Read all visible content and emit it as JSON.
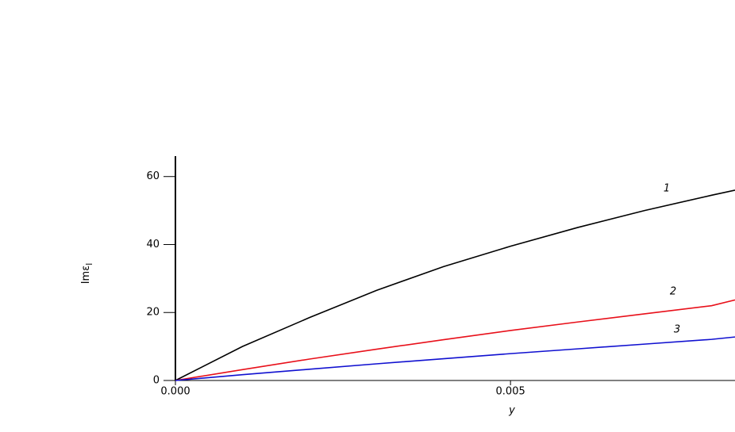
{
  "chart_data": {
    "type": "line",
    "x_label": "y",
    "y_label": "Imε",
    "y_label_sub": "l",
    "x": [
      0,
      0.001,
      0.002,
      0.003,
      0.004,
      0.005,
      0.006,
      0.007,
      0.008,
      0.00835
    ],
    "series": [
      {
        "name": "1",
        "color": "#000000",
        "values": [
          0,
          10,
          18.5,
          26.5,
          33.5,
          39.5,
          45,
          50,
          54.5,
          56
        ]
      },
      {
        "name": "2",
        "color": "#e8101a",
        "values": [
          0,
          3.2,
          6.3,
          9.2,
          12,
          14.7,
          17.2,
          19.6,
          22,
          23.7
        ]
      },
      {
        "name": "3",
        "color": "#1010d0",
        "values": [
          0,
          1.7,
          3.3,
          4.9,
          6.4,
          7.9,
          9.3,
          10.7,
          12.1,
          12.8
        ]
      }
    ],
    "xlim": [
      0,
      0.00835
    ],
    "ylim": [
      0,
      66
    ],
    "xticks": [
      {
        "value": 0,
        "label": "0.000"
      },
      {
        "value": 0.005,
        "label": "0.005"
      }
    ],
    "yticks": [
      0,
      20,
      40,
      60
    ]
  }
}
